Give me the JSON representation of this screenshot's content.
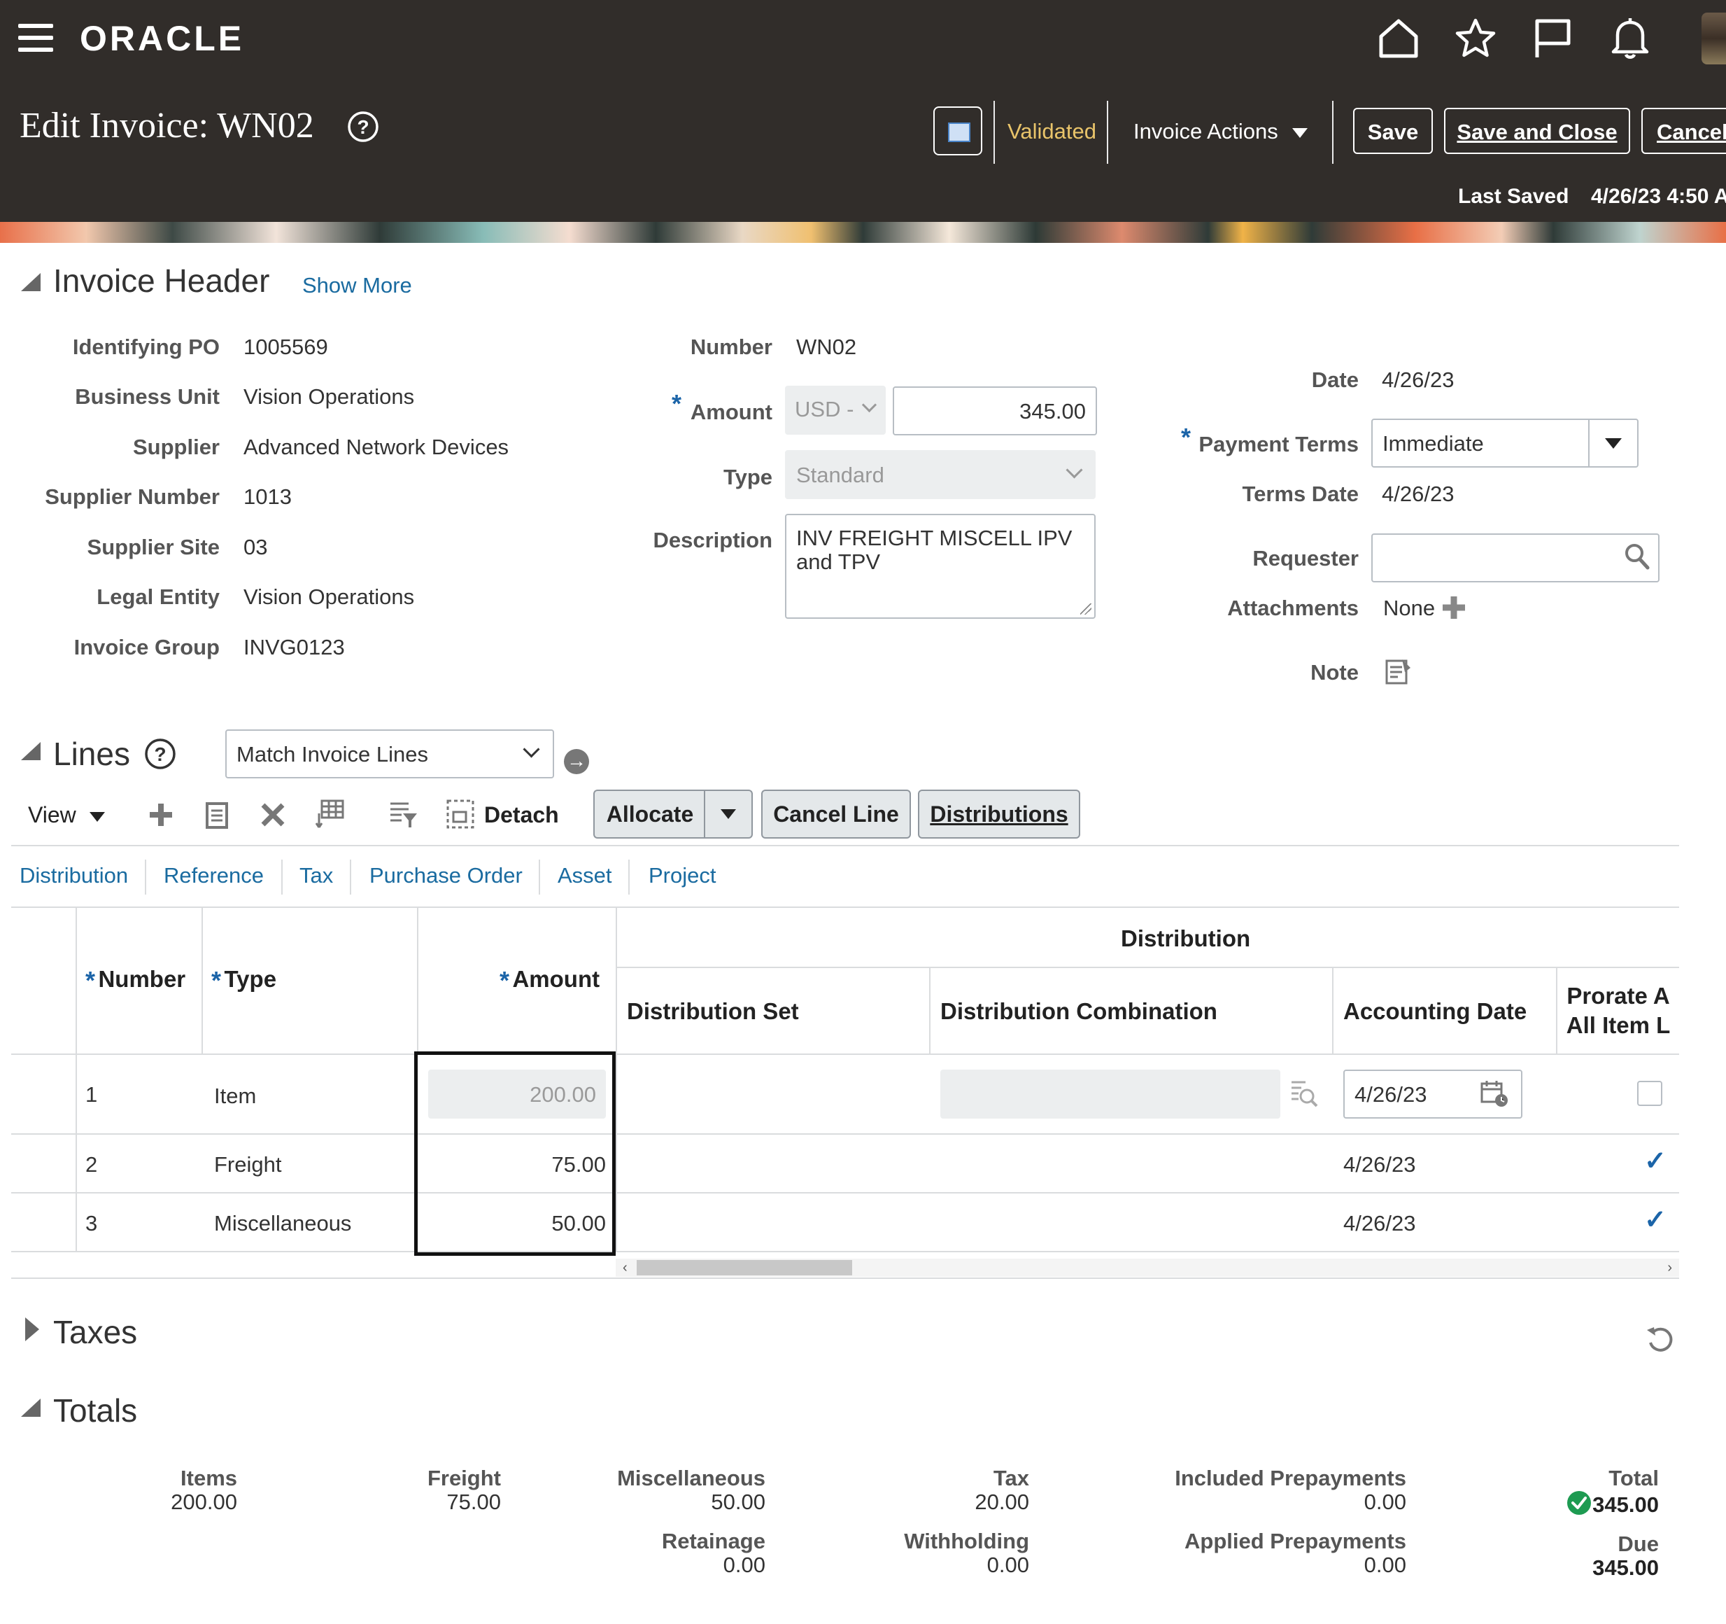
{
  "app": {
    "brand": "ORACLE",
    "page_title": "Edit Invoice: WN02",
    "status": "Validated",
    "invoice_actions_label": "Invoice Actions",
    "save_label": "Save",
    "save_close_label": "Save and Close",
    "cancel_label": "Cancel",
    "last_saved_label": "Last Saved",
    "last_saved_value": "4/26/23 4:50 A"
  },
  "invoice_header": {
    "title": "Invoice Header",
    "show_more": "Show More",
    "left": [
      {
        "label": "Identifying PO",
        "value": "1005569"
      },
      {
        "label": "Business Unit",
        "value": "Vision Operations"
      },
      {
        "label": "Supplier",
        "value": "Advanced Network Devices"
      },
      {
        "label": "Supplier Number",
        "value": "1013"
      },
      {
        "label": "Supplier Site",
        "value": "03"
      },
      {
        "label": "Legal Entity",
        "value": "Vision Operations"
      },
      {
        "label": "Invoice Group",
        "value": "INVG0123"
      }
    ],
    "number_label": "Number",
    "number_value": "WN02",
    "amount_label": "Amount",
    "currency": "USD -",
    "amount_value": "345.00",
    "type_label": "Type",
    "type_value": "Standard",
    "description_label": "Description",
    "description_value": "INV FREIGHT MISCELL IPV and TPV",
    "date_label": "Date",
    "date_value": "4/26/23",
    "payment_terms_label": "Payment Terms",
    "payment_terms_value": "Immediate",
    "terms_date_label": "Terms Date",
    "terms_date_value": "4/26/23",
    "requester_label": "Requester",
    "requester_value": "",
    "attachments_label": "Attachments",
    "attachments_value": "None",
    "note_label": "Note"
  },
  "lines": {
    "title": "Lines",
    "match_select": "Match Invoice Lines",
    "view_label": "View",
    "detach_label": "Detach",
    "allocate_label": "Allocate",
    "cancel_line_label": "Cancel Line",
    "distributions_label": "Distributions",
    "tabs": [
      "Distribution",
      "Reference",
      "Tax",
      "Purchase Order",
      "Asset",
      "Project"
    ],
    "group_header": "Distribution",
    "columns": {
      "number": "Number",
      "type": "Type",
      "amount": "Amount",
      "distribution_set": "Distribution Set",
      "distribution_combination": "Distribution Combination",
      "accounting_date": "Accounting Date",
      "prorate_line1": "Prorate A",
      "prorate_line2": "All Item L"
    },
    "rows": [
      {
        "number": "1",
        "type": "Item",
        "amount": "200.00",
        "accounting_date": "4/26/23",
        "prorate": false
      },
      {
        "number": "2",
        "type": "Freight",
        "amount": "75.00",
        "accounting_date": "4/26/23",
        "prorate": true
      },
      {
        "number": "3",
        "type": "Miscellaneous",
        "amount": "50.00",
        "accounting_date": "4/26/23",
        "prorate": true
      }
    ]
  },
  "taxes": {
    "title": "Taxes"
  },
  "totals": {
    "title": "Totals",
    "items_label": "Items",
    "items_value": "200.00",
    "freight_label": "Freight",
    "freight_value": "75.00",
    "misc_label": "Miscellaneous",
    "misc_value": "50.00",
    "retainage_label": "Retainage",
    "retainage_value": "0.00",
    "tax_label": "Tax",
    "tax_value": "20.00",
    "withholding_label": "Withholding",
    "withholding_value": "0.00",
    "included_prepay_label": "Included Prepayments",
    "included_prepay_value": "0.00",
    "applied_prepay_label": "Applied Prepayments",
    "applied_prepay_value": "0.00",
    "total_label": "Total",
    "total_value": "345.00",
    "due_label": "Due",
    "due_value": "345.00"
  },
  "colors": {
    "header_bg": "#312d2a",
    "status": "#e9c46a",
    "link": "#1a6ba0",
    "required": "#1b64a8",
    "ok": "#1e9b52"
  }
}
